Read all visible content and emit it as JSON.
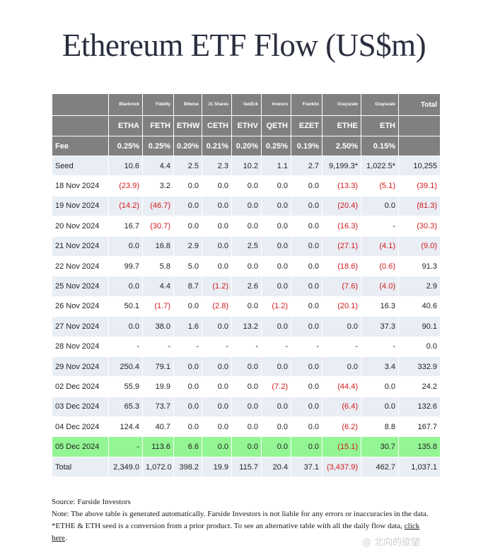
{
  "title": "Ethereum ETF Flow (US$m)",
  "issuers": [
    "Blackrock",
    "Fidelity",
    "Bitwise",
    "21 Shares",
    "VanEck",
    "Invesco",
    "Franklin",
    "Grayscale",
    "Grayscale"
  ],
  "total_header": "Total",
  "tickers": [
    "ETHA",
    "FETH",
    "ETHW",
    "CETH",
    "ETHV",
    "QETH",
    "EZET",
    "ETHE",
    "ETH"
  ],
  "fee_label": "Fee",
  "fees": [
    "0.25%",
    "0.25%",
    "0.20%",
    "0.21%",
    "0.20%",
    "0.25%",
    "0.19%",
    "2.50%",
    "0.15%"
  ],
  "rows": [
    {
      "label": "Seed",
      "cells": [
        "10.6",
        "4.4",
        "2.5",
        "2.3",
        "10.2",
        "1.1",
        "2.7",
        "9,199.3*",
        "1,022.5*",
        "10,255"
      ]
    },
    {
      "label": "18 Nov 2024",
      "cells": [
        "(23.9)",
        "3.2",
        "0.0",
        "0.0",
        "0.0",
        "0.0",
        "0.0",
        "(13.3)",
        "(5.1)",
        "(39.1)"
      ]
    },
    {
      "label": "19 Nov 2024",
      "cells": [
        "(14.2)",
        "(46.7)",
        "0.0",
        "0.0",
        "0.0",
        "0.0",
        "0.0",
        "(20.4)",
        "0.0",
        "(81.3)"
      ]
    },
    {
      "label": "20 Nov 2024",
      "cells": [
        "16.7",
        "(30.7)",
        "0.0",
        "0.0",
        "0.0",
        "0.0",
        "0.0",
        "(16.3)",
        "-",
        "(30.3)"
      ]
    },
    {
      "label": "21 Nov 2024",
      "cells": [
        "0.0",
        "16.8",
        "2.9",
        "0.0",
        "2.5",
        "0.0",
        "0.0",
        "(27.1)",
        "(4.1)",
        "(9.0)"
      ]
    },
    {
      "label": "22 Nov 2024",
      "cells": [
        "99.7",
        "5.8",
        "5.0",
        "0.0",
        "0.0",
        "0.0",
        "0.0",
        "(18.6)",
        "(0.6)",
        "91.3"
      ]
    },
    {
      "label": "25 Nov 2024",
      "cells": [
        "0.0",
        "4.4",
        "8.7",
        "(1.2)",
        "2.6",
        "0.0",
        "0.0",
        "(7.6)",
        "(4.0)",
        "2.9"
      ]
    },
    {
      "label": "26 Nov 2024",
      "cells": [
        "50.1",
        "(1.7)",
        "0.0",
        "(2.8)",
        "0.0",
        "(1.2)",
        "0.0",
        "(20.1)",
        "16.3",
        "40.6"
      ]
    },
    {
      "label": "27 Nov 2024",
      "cells": [
        "0.0",
        "38.0",
        "1.6",
        "0.0",
        "13.2",
        "0.0",
        "0.0",
        "0.0",
        "37.3",
        "90.1"
      ]
    },
    {
      "label": "28 Nov 2024",
      "cells": [
        "-",
        "-",
        "-",
        "-",
        "-",
        "-",
        "-",
        "-",
        "-",
        "0.0"
      ]
    },
    {
      "label": "29 Nov 2024",
      "cells": [
        "250.4",
        "79.1",
        "0.0",
        "0.0",
        "0.0",
        "0.0",
        "0.0",
        "0.0",
        "3.4",
        "332.9"
      ]
    },
    {
      "label": "02 Dec 2024",
      "cells": [
        "55.9",
        "19.9",
        "0.0",
        "0.0",
        "0.0",
        "(7.2)",
        "0.0",
        "(44.4)",
        "0.0",
        "24.2"
      ]
    },
    {
      "label": "03 Dec 2024",
      "cells": [
        "65.3",
        "73.7",
        "0.0",
        "0.0",
        "0.0",
        "0.0",
        "0.0",
        "(6.4)",
        "0.0",
        "132.6"
      ]
    },
    {
      "label": "04 Dec 2024",
      "cells": [
        "124.4",
        "40.7",
        "0.0",
        "0.0",
        "0.0",
        "0.0",
        "0.0",
        "(6.2)",
        "8.8",
        "167.7"
      ]
    },
    {
      "label": "05 Dec 2024",
      "cells": [
        "-",
        "113.6",
        "6.6",
        "0.0",
        "0.0",
        "0.0",
        "0.0",
        "(15.1)",
        "30.7",
        "135.8"
      ],
      "highlight": true
    }
  ],
  "total_row": {
    "label": "Total",
    "cells": [
      "2,349.0",
      "1,072.0",
      "398.2",
      "19.9",
      "115.7",
      "20.4",
      "37.1",
      "(3,437.9)",
      "462.7",
      "1,037.1"
    ]
  },
  "footer": {
    "source": "Source: Farside Investors",
    "note": "Note: The above table is generated automatically. Farside Investors is not liable for any errors or inaccuracies in the data. *ETHE & ETH seed is a conversion from a prior product.  To see an alternative table with all the daily flow data, ",
    "link_text": "click here",
    "trail": "."
  },
  "watermark": "@ 北向的欲望",
  "colors": {
    "header_bg": "#808080",
    "row_alt": "#e9edf4",
    "highlight": "#93f593",
    "negative": "#d21b1b"
  }
}
